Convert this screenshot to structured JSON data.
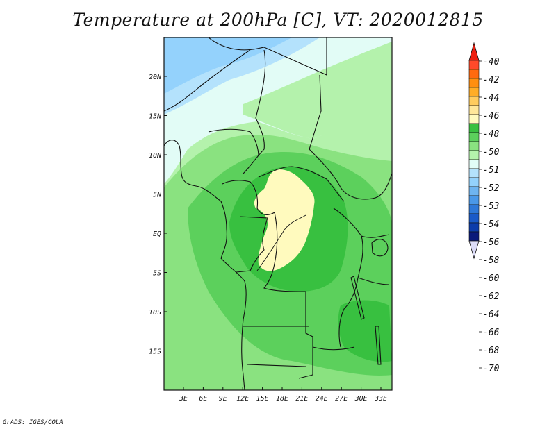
{
  "title": "Temperature at 200hPa [C], VT: 2020012815",
  "footer": "GrADS: IGES/COLA",
  "map": {
    "lat_labels": [
      "20N",
      "15N",
      "10N",
      "5N",
      "EQ",
      "5S",
      "10S",
      "15S"
    ],
    "lon_labels": [
      "3E",
      "6E",
      "9E",
      "12E",
      "15E",
      "18E",
      "21E",
      "24E",
      "27E",
      "30E",
      "33E"
    ]
  },
  "colorbar": {
    "levels": [
      {
        "label": "-40",
        "color": "#ff4a2a"
      },
      {
        "label": "-42",
        "color": "#ff6a10"
      },
      {
        "label": "-44",
        "color": "#ff8f10"
      },
      {
        "label": "-46",
        "color": "#ffad26"
      },
      {
        "label": "-48",
        "color": "#ffcc5e"
      },
      {
        "label": "-50",
        "color": "#ffe79a"
      },
      {
        "label": "-51",
        "color": "#fffabe"
      },
      {
        "label": "-52",
        "color": "#38c040"
      },
      {
        "label": "-53",
        "color": "#5cd05c"
      },
      {
        "label": "-54",
        "color": "#8ae280"
      },
      {
        "label": "-56",
        "color": "#b4f2ac"
      },
      {
        "label": "-58",
        "color": "#e2fcf6"
      },
      {
        "label": "-60",
        "color": "#b4e2fc"
      },
      {
        "label": "-62",
        "color": "#94d2fc"
      },
      {
        "label": "-64",
        "color": "#6eb4f0"
      },
      {
        "label": "-66",
        "color": "#4a98e8"
      },
      {
        "label": "-68",
        "color": "#2e78d8"
      },
      {
        "label": "-70",
        "color": "#1a5ac8"
      }
    ],
    "top_cap_color": "#ee2010",
    "extra_colors": [
      "#0c3caa",
      "#0a1a7a"
    ],
    "bottom_cap_color": "#dcdcf8"
  }
}
